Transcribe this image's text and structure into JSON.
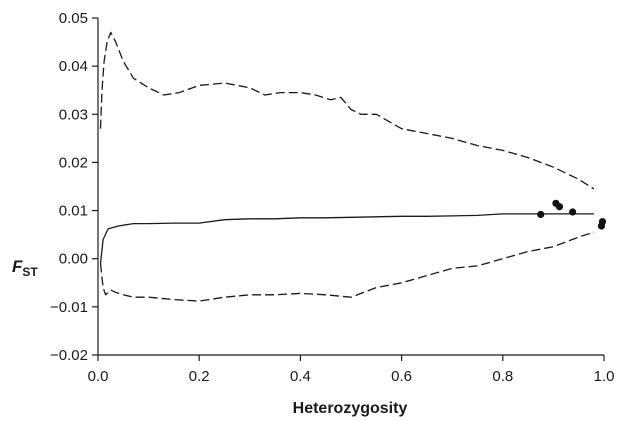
{
  "chart_data": {
    "type": "line",
    "xlabel": "Heterozygosity",
    "ylabel": {
      "main": "F",
      "subscript": "ST"
    },
    "xlim": [
      0.0,
      1.0
    ],
    "ylim": [
      -0.02,
      0.05
    ],
    "x_ticks": [
      "0.0",
      "0.2",
      "0.4",
      "0.6",
      "0.8",
      "1.0"
    ],
    "x_tick_values": [
      0.0,
      0.2,
      0.4,
      0.6,
      0.8,
      1.0
    ],
    "y_ticks": [
      "0.05",
      "0.04",
      "0.03",
      "0.02",
      "0.01",
      "0.00",
      "−0.01",
      "−0.02"
    ],
    "y_tick_values": [
      0.05,
      0.04,
      0.03,
      0.02,
      0.01,
      0.0,
      -0.01,
      -0.02
    ],
    "grid": false,
    "legend": "none",
    "series": [
      {
        "style": "dashed",
        "role": "upper bound",
        "x": [
          0.005,
          0.008,
          0.012,
          0.018,
          0.025,
          0.035,
          0.05,
          0.07,
          0.1,
          0.13,
          0.16,
          0.2,
          0.25,
          0.3,
          0.33,
          0.36,
          0.4,
          0.43,
          0.46,
          0.48,
          0.5,
          0.52,
          0.55,
          0.6,
          0.65,
          0.7,
          0.75,
          0.8,
          0.85,
          0.9,
          0.95,
          0.98
        ],
        "y": [
          0.027,
          0.035,
          0.041,
          0.045,
          0.047,
          0.045,
          0.041,
          0.0375,
          0.0355,
          0.034,
          0.0345,
          0.036,
          0.0365,
          0.0355,
          0.034,
          0.0345,
          0.0345,
          0.034,
          0.033,
          0.0335,
          0.031,
          0.03,
          0.03,
          0.027,
          0.026,
          0.025,
          0.0235,
          0.0225,
          0.021,
          0.019,
          0.0165,
          0.0145
        ]
      },
      {
        "style": "solid",
        "role": "median",
        "x": [
          0.005,
          0.01,
          0.02,
          0.04,
          0.07,
          0.1,
          0.15,
          0.2,
          0.25,
          0.3,
          0.35,
          0.4,
          0.45,
          0.5,
          0.55,
          0.6,
          0.65,
          0.7,
          0.75,
          0.8,
          0.85,
          0.9,
          0.95,
          0.98
        ],
        "y": [
          -0.001,
          0.004,
          0.0062,
          0.0068,
          0.0073,
          0.0073,
          0.0074,
          0.0074,
          0.0081,
          0.0083,
          0.0083,
          0.0085,
          0.0085,
          0.0086,
          0.0087,
          0.0088,
          0.0088,
          0.0089,
          0.009,
          0.0093,
          0.0093,
          0.0093,
          0.0093,
          0.0093
        ]
      },
      {
        "style": "dashed",
        "role": "lower bound",
        "x": [
          0.005,
          0.01,
          0.015,
          0.025,
          0.035,
          0.05,
          0.07,
          0.1,
          0.15,
          0.2,
          0.25,
          0.3,
          0.35,
          0.4,
          0.45,
          0.5,
          0.55,
          0.6,
          0.65,
          0.7,
          0.75,
          0.8,
          0.85,
          0.9,
          0.95,
          0.98
        ],
        "y": [
          -0.001,
          -0.006,
          -0.0075,
          -0.0065,
          -0.007,
          -0.0075,
          -0.008,
          -0.008,
          -0.0085,
          -0.0088,
          -0.008,
          -0.0075,
          -0.0075,
          -0.0072,
          -0.0075,
          -0.008,
          -0.006,
          -0.005,
          -0.0035,
          -0.002,
          -0.0015,
          0.0,
          0.0015,
          0.0025,
          0.0045,
          0.0055
        ]
      }
    ],
    "points": {
      "style": "filled circles",
      "x": [
        0.875,
        0.905,
        0.912,
        0.938,
        0.995,
        0.997
      ],
      "y": [
        0.0092,
        0.0115,
        0.0108,
        0.0097,
        0.0068,
        0.0077
      ]
    }
  }
}
